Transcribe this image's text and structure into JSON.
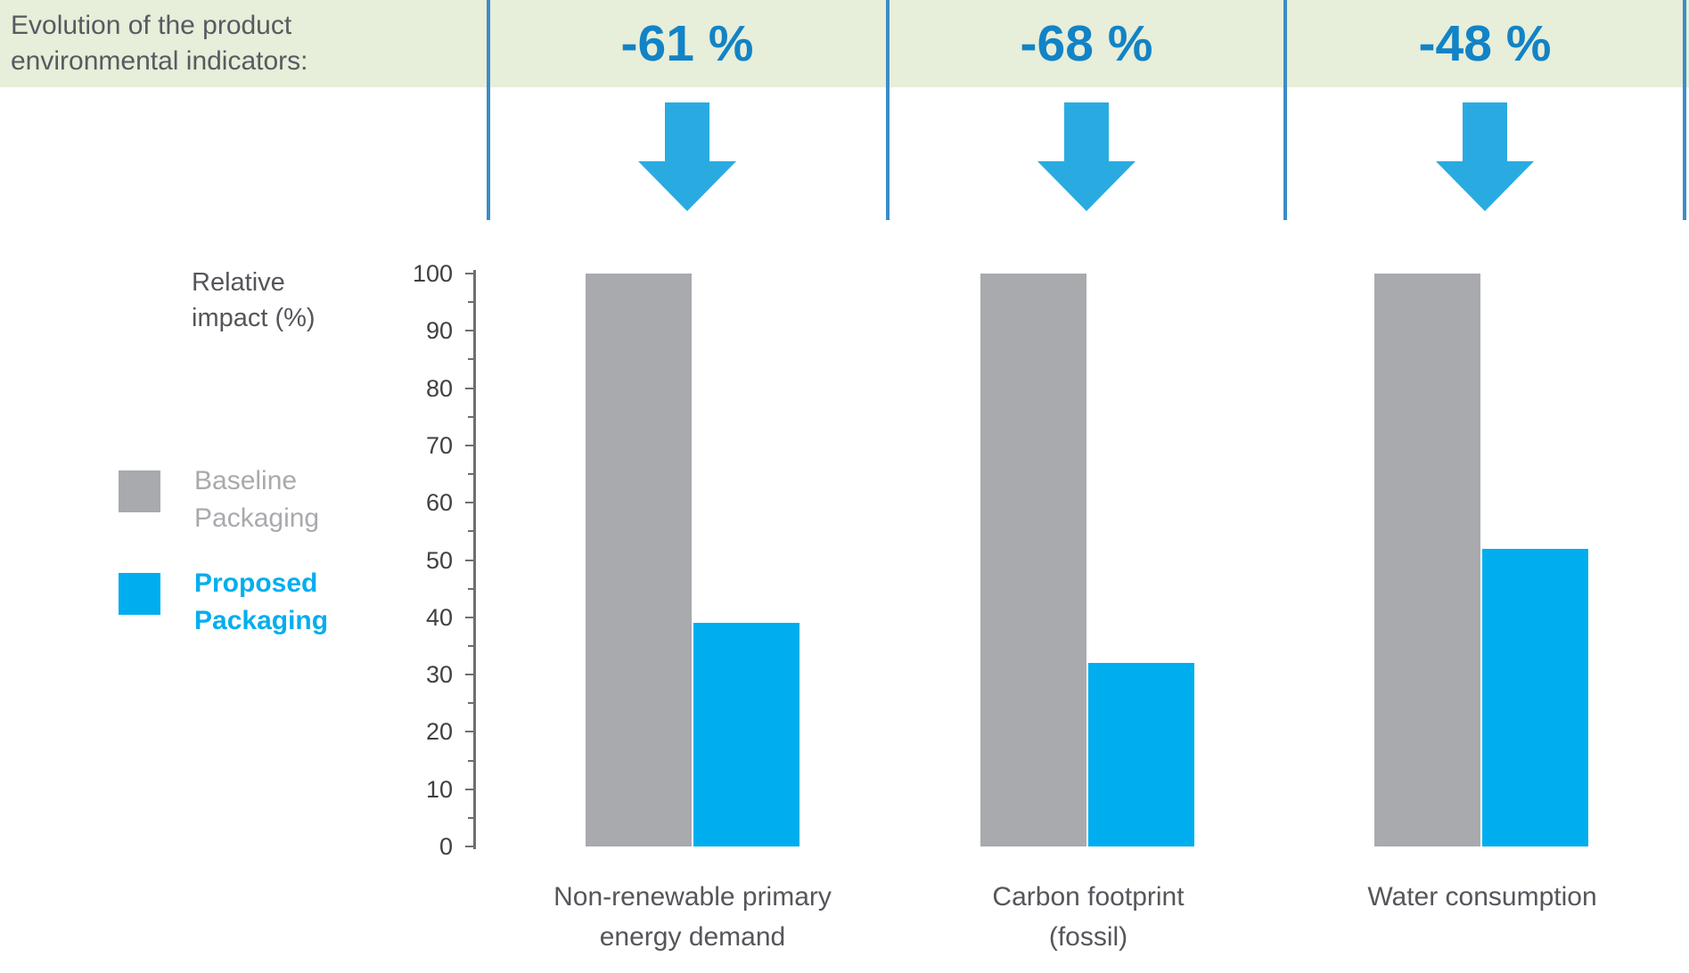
{
  "header": {
    "title_lines": [
      "Evolution of the product",
      "environmental indicators:"
    ],
    "reductions": [
      "-61 %",
      "-68 %",
      "-48 %"
    ]
  },
  "chart_data": {
    "type": "bar",
    "title": "Evolution of the product environmental indicators",
    "ylabel": "Relative impact (%)",
    "ylabel_lines": [
      "Relative",
      "impact (%)"
    ],
    "xlabel": "",
    "ylim": [
      0,
      100
    ],
    "ytick_step": 10,
    "grid": false,
    "legend_position": "left",
    "categories": [
      "Non-renewable primary energy demand",
      "Carbon footprint (fossil)",
      "Water consumption"
    ],
    "category_lines": [
      [
        "Non-renewable primary",
        "energy demand"
      ],
      [
        "Carbon footprint",
        "(fossil)"
      ],
      [
        "Water consumption"
      ]
    ],
    "series": [
      {
        "name": "Baseline Packaging",
        "values": [
          100,
          100,
          100
        ],
        "color": "#A8AAAD"
      },
      {
        "name": "Proposed Packaging",
        "values": [
          39,
          32,
          52
        ],
        "color": "#00AEEF"
      }
    ],
    "annotations": [
      {
        "text": "-61 %",
        "category": "Non-renewable primary energy demand"
      },
      {
        "text": "-68 %",
        "category": "Carbon footprint (fossil)"
      },
      {
        "text": "-48 %",
        "category": "Water consumption"
      }
    ]
  },
  "colors": {
    "banner_bg": "#E7EED9",
    "divider": "#3B8DC6",
    "reduction_text": "#1283C6",
    "arrow": "#29ABE2",
    "baseline_series": "#A8AAAD",
    "proposed_series": "#00AEEF",
    "axis": "#6D6E71",
    "tick_label_text": "#414042",
    "dark_text": "#54565B"
  }
}
